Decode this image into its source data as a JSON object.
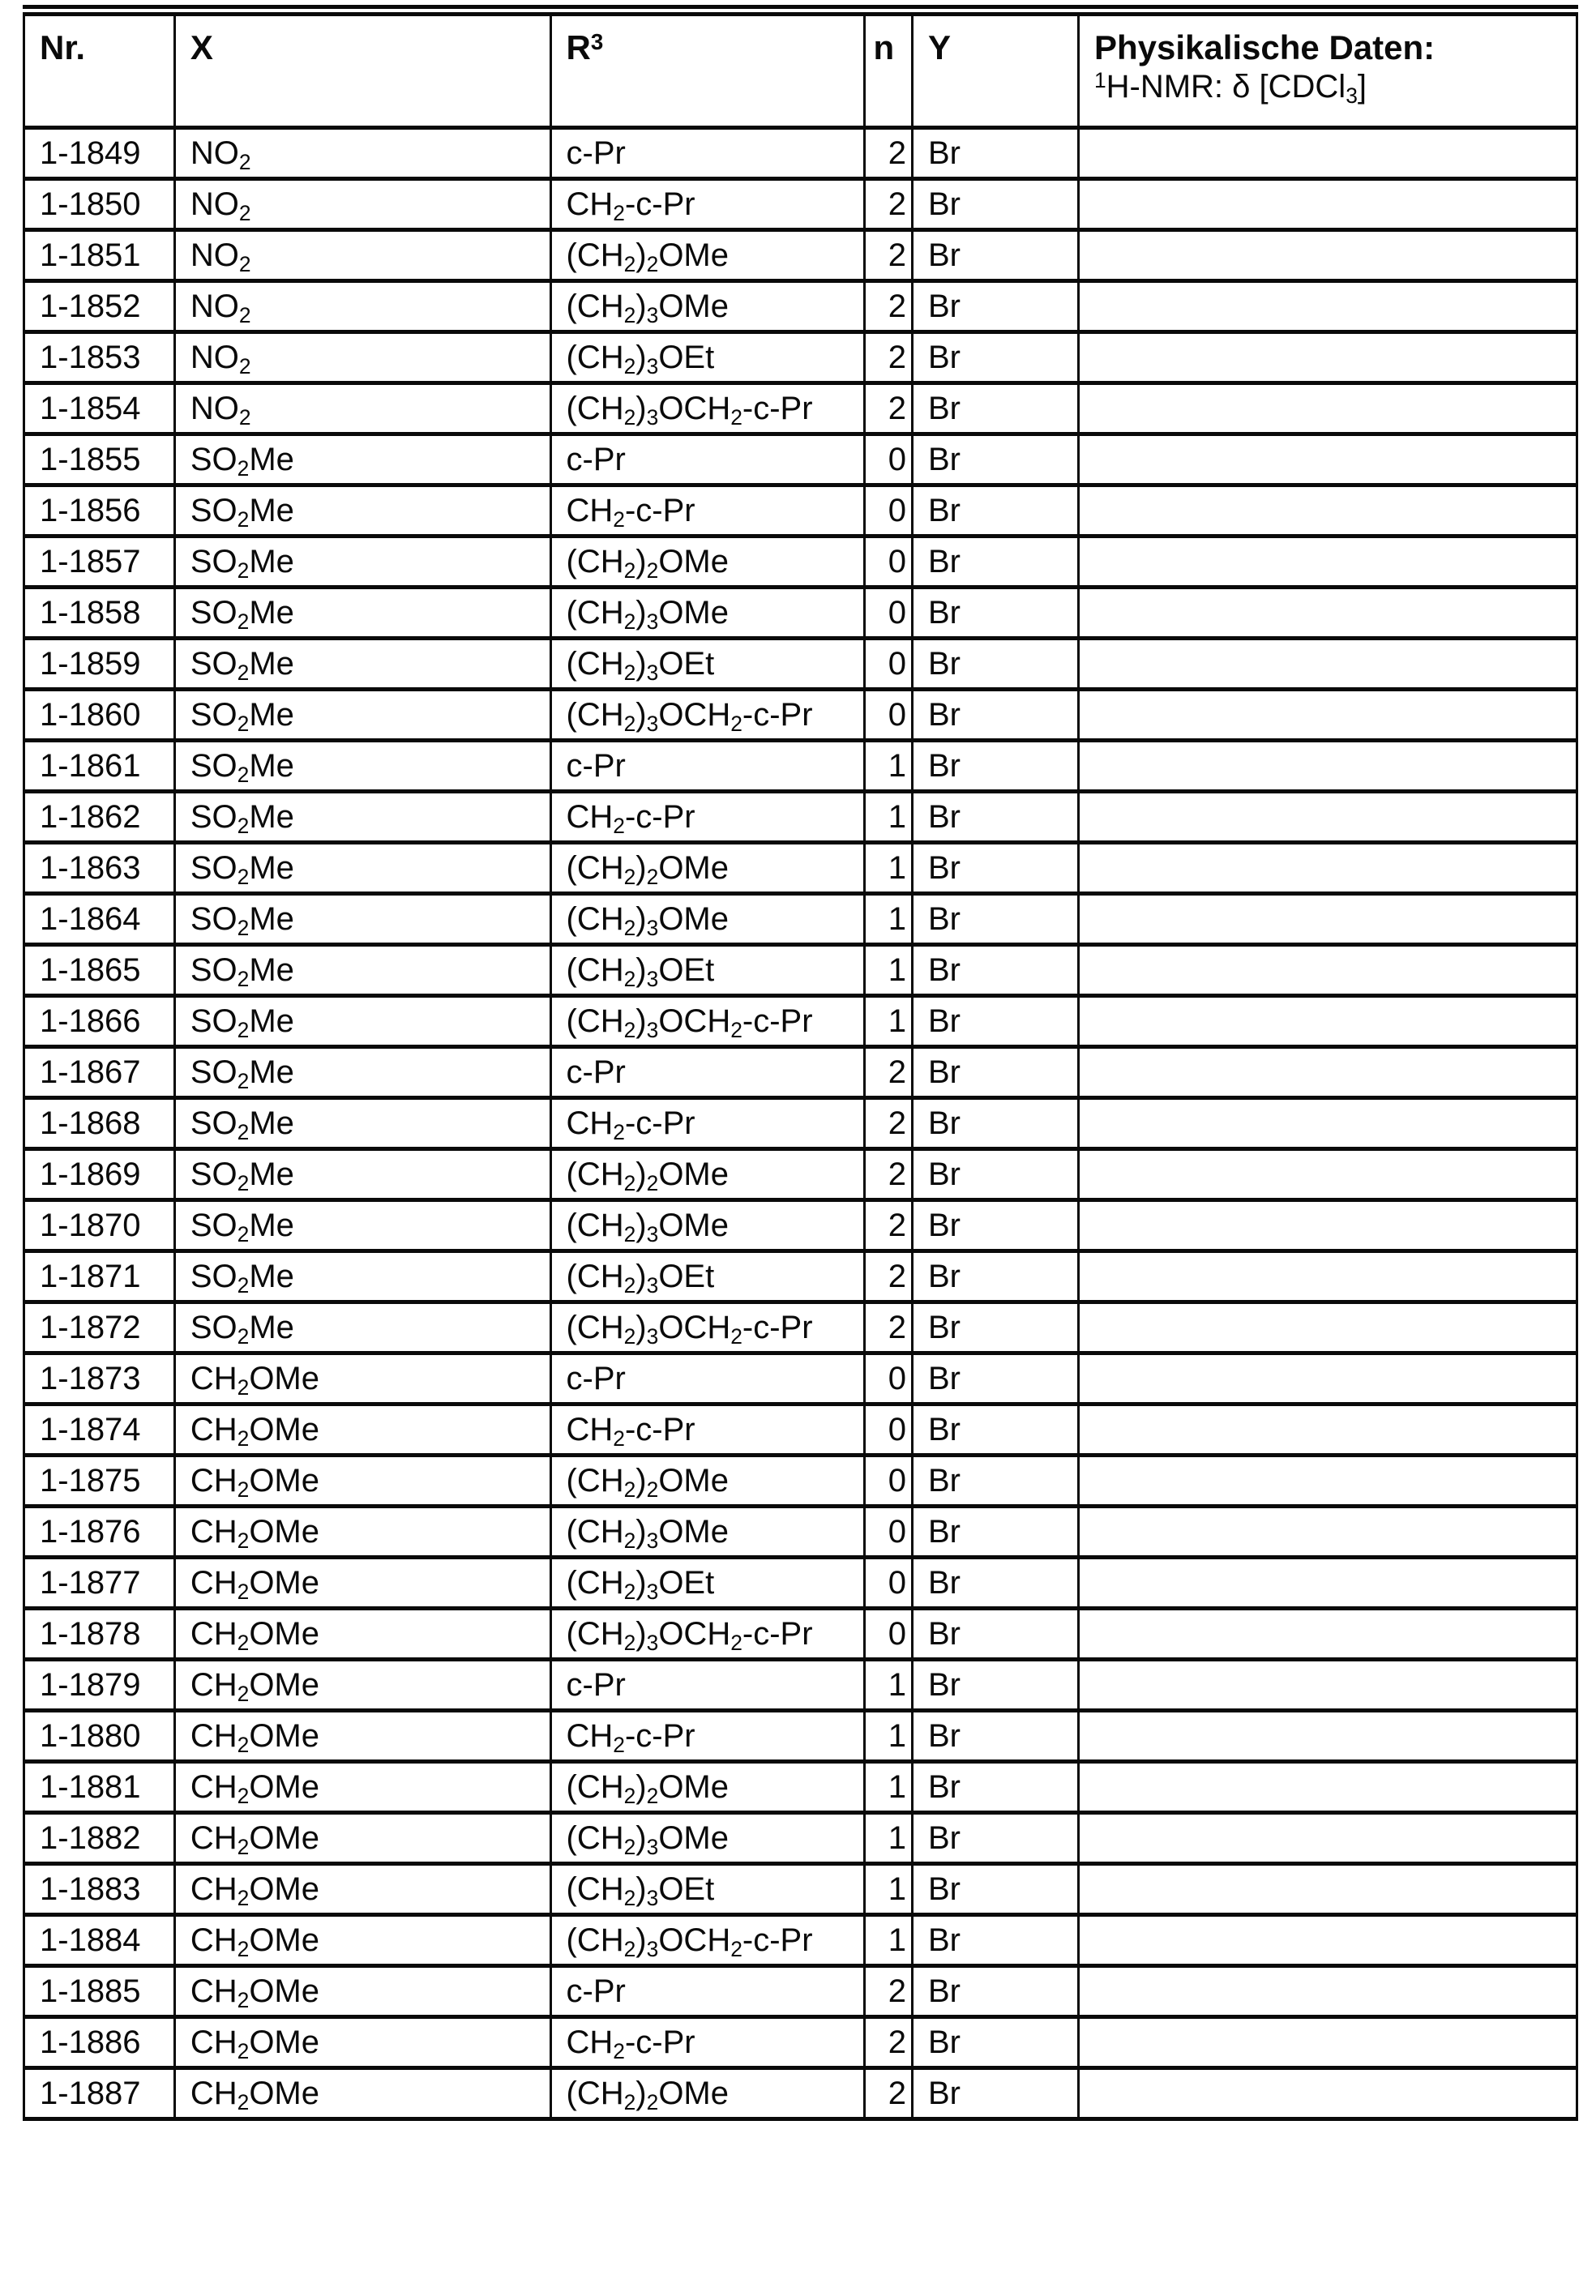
{
  "document": {
    "type": "scanned-table-page",
    "ink_color": "#0a0a0a",
    "paper_color": "#ffffff"
  },
  "table": {
    "headers": {
      "nr": "Nr.",
      "x": "X",
      "r3": "R^3^",
      "n": "n",
      "y": "Y",
      "daten_line1": "Physikalische Daten:",
      "daten_line2": "^1^H-NMR: δ [CDCl_3_]"
    },
    "rows": [
      {
        "nr": "1-1849",
        "x": "NO_2_",
        "r3": "c-Pr",
        "n": "2",
        "y": "Br",
        "daten": ""
      },
      {
        "nr": "1-1850",
        "x": "NO_2_",
        "r3": "CH_2_-c-Pr",
        "n": "2",
        "y": "Br",
        "daten": ""
      },
      {
        "nr": "1-1851",
        "x": "NO_2_",
        "r3": "(CH_2_)_2_OMe",
        "n": "2",
        "y": "Br",
        "daten": ""
      },
      {
        "nr": "1-1852",
        "x": "NO_2_",
        "r3": "(CH_2_)_3_OMe",
        "n": "2",
        "y": "Br",
        "daten": ""
      },
      {
        "nr": "1-1853",
        "x": "NO_2_",
        "r3": "(CH_2_)_3_OEt",
        "n": "2",
        "y": "Br",
        "daten": ""
      },
      {
        "nr": "1-1854",
        "x": "NO_2_",
        "r3": "(CH_2_)_3_OCH_2_-c-Pr",
        "n": "2",
        "y": "Br",
        "daten": ""
      },
      {
        "nr": "1-1855",
        "x": "SO_2_Me",
        "r3": "c-Pr",
        "n": "0",
        "y": "Br",
        "daten": ""
      },
      {
        "nr": "1-1856",
        "x": "SO_2_Me",
        "r3": "CH_2_-c-Pr",
        "n": "0",
        "y": "Br",
        "daten": ""
      },
      {
        "nr": "1-1857",
        "x": "SO_2_Me",
        "r3": "(CH_2_)_2_OMe",
        "n": "0",
        "y": "Br",
        "daten": ""
      },
      {
        "nr": "1-1858",
        "x": "SO_2_Me",
        "r3": "(CH_2_)_3_OMe",
        "n": "0",
        "y": "Br",
        "daten": ""
      },
      {
        "nr": "1-1859",
        "x": "SO_2_Me",
        "r3": "(CH_2_)_3_OEt",
        "n": "0",
        "y": "Br",
        "daten": ""
      },
      {
        "nr": "1-1860",
        "x": "SO_2_Me",
        "r3": "(CH_2_)_3_OCH_2_-c-Pr",
        "n": "0",
        "y": "Br",
        "daten": ""
      },
      {
        "nr": "1-1861",
        "x": "SO_2_Me",
        "r3": "c-Pr",
        "n": "1",
        "y": "Br",
        "daten": ""
      },
      {
        "nr": "1-1862",
        "x": "SO_2_Me",
        "r3": "CH_2_-c-Pr",
        "n": "1",
        "y": "Br",
        "daten": ""
      },
      {
        "nr": "1-1863",
        "x": "SO_2_Me",
        "r3": "(CH_2_)_2_OMe",
        "n": "1",
        "y": "Br",
        "daten": ""
      },
      {
        "nr": "1-1864",
        "x": "SO_2_Me",
        "r3": "(CH_2_)_3_OMe",
        "n": "1",
        "y": "Br",
        "daten": ""
      },
      {
        "nr": "1-1865",
        "x": "SO_2_Me",
        "r3": "(CH_2_)_3_OEt",
        "n": "1",
        "y": "Br",
        "daten": ""
      },
      {
        "nr": "1-1866",
        "x": "SO_2_Me",
        "r3": "(CH_2_)_3_OCH_2_-c-Pr",
        "n": "1",
        "y": "Br",
        "daten": ""
      },
      {
        "nr": "1-1867",
        "x": "SO_2_Me",
        "r3": "c-Pr",
        "n": "2",
        "y": "Br",
        "daten": ""
      },
      {
        "nr": "1-1868",
        "x": "SO_2_Me",
        "r3": "CH_2_-c-Pr",
        "n": "2",
        "y": "Br",
        "daten": ""
      },
      {
        "nr": "1-1869",
        "x": "SO_2_Me",
        "r3": "(CH_2_)_2_OMe",
        "n": "2",
        "y": "Br",
        "daten": ""
      },
      {
        "nr": "1-1870",
        "x": "SO_2_Me",
        "r3": "(CH_2_)_3_OMe",
        "n": "2",
        "y": "Br",
        "daten": ""
      },
      {
        "nr": "1-1871",
        "x": "SO_2_Me",
        "r3": "(CH_2_)_3_OEt",
        "n": "2",
        "y": "Br",
        "daten": ""
      },
      {
        "nr": "1-1872",
        "x": "SO_2_Me",
        "r3": "(CH_2_)_3_OCH_2_-c-Pr",
        "n": "2",
        "y": "Br",
        "daten": ""
      },
      {
        "nr": "1-1873",
        "x": "CH_2_OMe",
        "r3": "c-Pr",
        "n": "0",
        "y": "Br",
        "daten": ""
      },
      {
        "nr": "1-1874",
        "x": "CH_2_OMe",
        "r3": "CH_2_-c-Pr",
        "n": "0",
        "y": "Br",
        "daten": ""
      },
      {
        "nr": "1-1875",
        "x": "CH_2_OMe",
        "r3": "(CH_2_)_2_OMe",
        "n": "0",
        "y": "Br",
        "daten": ""
      },
      {
        "nr": "1-1876",
        "x": "CH_2_OMe",
        "r3": "(CH_2_)_3_OMe",
        "n": "0",
        "y": "Br",
        "daten": ""
      },
      {
        "nr": "1-1877",
        "x": "CH_2_OMe",
        "r3": "(CH_2_)_3_OEt",
        "n": "0",
        "y": "Br",
        "daten": ""
      },
      {
        "nr": "1-1878",
        "x": "CH_2_OMe",
        "r3": "(CH_2_)_3_OCH_2_-c-Pr",
        "n": "0",
        "y": "Br",
        "daten": ""
      },
      {
        "nr": "1-1879",
        "x": "CH_2_OMe",
        "r3": "c-Pr",
        "n": "1",
        "y": "Br",
        "daten": ""
      },
      {
        "nr": "1-1880",
        "x": "CH_2_OMe",
        "r3": "CH_2_-c-Pr",
        "n": "1",
        "y": "Br",
        "daten": ""
      },
      {
        "nr": "1-1881",
        "x": "CH_2_OMe",
        "r3": "(CH_2_)_2_OMe",
        "n": "1",
        "y": "Br",
        "daten": ""
      },
      {
        "nr": "1-1882",
        "x": "CH_2_OMe",
        "r3": "(CH_2_)_3_OMe",
        "n": "1",
        "y": "Br",
        "daten": ""
      },
      {
        "nr": "1-1883",
        "x": "CH_2_OMe",
        "r3": "(CH_2_)_3_OEt",
        "n": "1",
        "y": "Br",
        "daten": ""
      },
      {
        "nr": "1-1884",
        "x": "CH_2_OMe",
        "r3": "(CH_2_)_3_OCH_2_-c-Pr",
        "n": "1",
        "y": "Br",
        "daten": ""
      },
      {
        "nr": "1-1885",
        "x": "CH_2_OMe",
        "r3": "c-Pr",
        "n": "2",
        "y": "Br",
        "daten": ""
      },
      {
        "nr": "1-1886",
        "x": "CH_2_OMe",
        "r3": "CH_2_-c-Pr",
        "n": "2",
        "y": "Br",
        "daten": ""
      },
      {
        "nr": "1-1887",
        "x": "CH_2_OMe",
        "r3": "(CH_2_)_2_OMe",
        "n": "2",
        "y": "Br",
        "daten": ""
      }
    ]
  }
}
